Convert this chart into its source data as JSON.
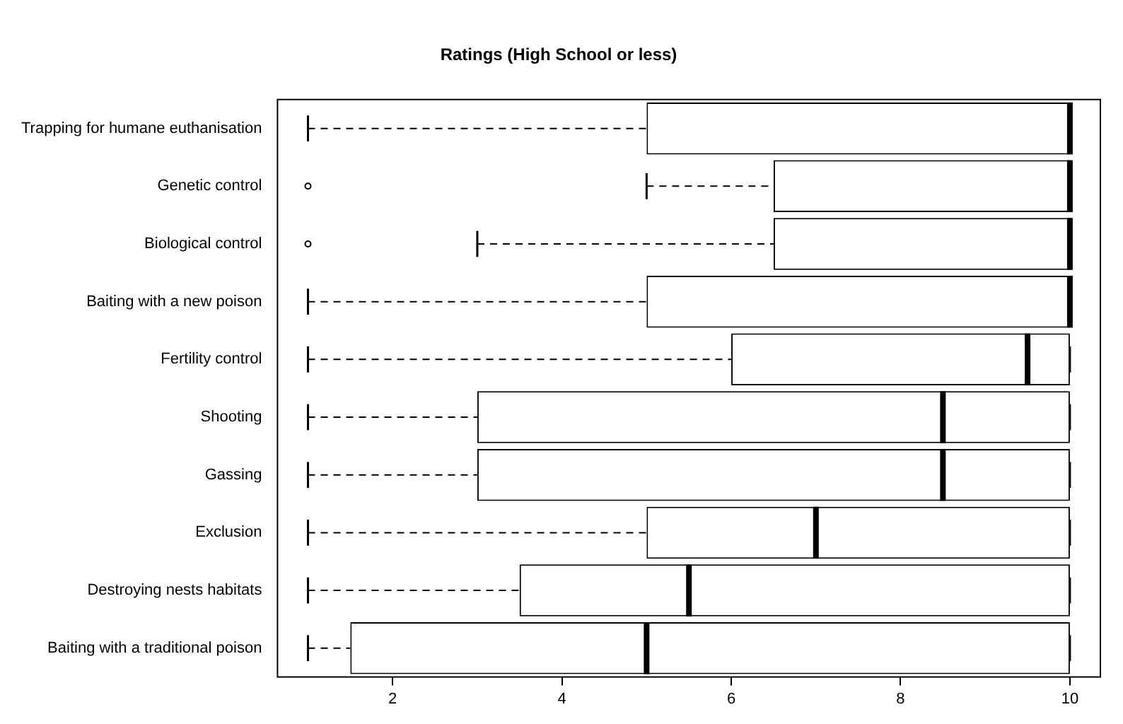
{
  "chart_data": {
    "type": "box",
    "title": "Ratings (High School or less)",
    "orientation": "horizontal",
    "categories": [
      "Trapping for humane euthanisation",
      "Genetic control",
      "Biological control",
      "Baiting with a new poison",
      "Fertility control",
      "Shooting",
      "Gassing",
      "Exclusion",
      "Destroying nests habitats",
      "Baiting with a traditional poison"
    ],
    "boxes": [
      {
        "low": 1,
        "q1": 5,
        "median": 10,
        "q3": 10,
        "high": 10
      },
      {
        "low": 5,
        "q1": 6.5,
        "median": 10,
        "q3": 10,
        "high": 10,
        "outliers": [
          1
        ]
      },
      {
        "low": 3,
        "q1": 6.5,
        "median": 10,
        "q3": 10,
        "high": 10,
        "outliers": [
          1
        ]
      },
      {
        "low": 1,
        "q1": 5,
        "median": 10,
        "q3": 10,
        "high": 10
      },
      {
        "low": 1,
        "q1": 6,
        "median": 9.5,
        "q3": 10,
        "high": 10
      },
      {
        "low": 1,
        "q1": 3,
        "median": 8.5,
        "q3": 10,
        "high": 10
      },
      {
        "low": 1,
        "q1": 3,
        "median": 8.5,
        "q3": 10,
        "high": 10
      },
      {
        "low": 1,
        "q1": 5,
        "median": 7,
        "q3": 10,
        "high": 10
      },
      {
        "low": 1,
        "q1": 3.5,
        "median": 5.5,
        "q3": 10,
        "high": 10
      },
      {
        "low": 1,
        "q1": 1.5,
        "median": 5,
        "q3": 10,
        "high": 10
      }
    ],
    "xlim": [
      0.64,
      10.36
    ],
    "xticks": [
      2,
      4,
      6,
      8,
      10
    ]
  }
}
